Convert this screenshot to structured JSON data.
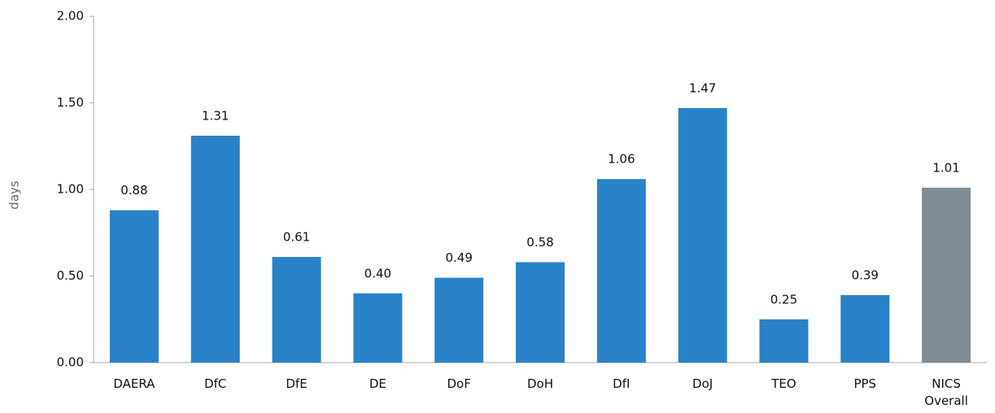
{
  "chart_data": {
    "type": "bar",
    "y_label": "days",
    "categories": [
      "DAERA",
      "DfC",
      "DfE",
      "DE",
      "DoF",
      "DoH",
      "DfI",
      "DoJ",
      "TEO",
      "PPS",
      "NICS Overall"
    ],
    "values": [
      0.88,
      1.31,
      0.61,
      0.4,
      0.49,
      0.58,
      1.06,
      1.47,
      0.25,
      0.39,
      1.01
    ],
    "value_labels": [
      "0.88",
      "1.31",
      "0.61",
      "0.40",
      "0.49",
      "0.58",
      "1.06",
      "1.47",
      "0.25",
      "0.39",
      "1.01"
    ],
    "colors": [
      "#2a82c8",
      "#2a82c8",
      "#2a82c8",
      "#2a82c8",
      "#2a82c8",
      "#2a82c8",
      "#2a82c8",
      "#2a82c8",
      "#2a82c8",
      "#2a82c8",
      "#7f8c93"
    ],
    "ylim": [
      0,
      2
    ],
    "yticks": [
      {
        "value": 0,
        "label": "0.00"
      },
      {
        "value": 0.5,
        "label": "0.50"
      },
      {
        "value": 1,
        "label": "1.00"
      },
      {
        "value": 1.5,
        "label": "1.50"
      },
      {
        "value": 2,
        "label": "2.00"
      }
    ],
    "grid": false
  }
}
